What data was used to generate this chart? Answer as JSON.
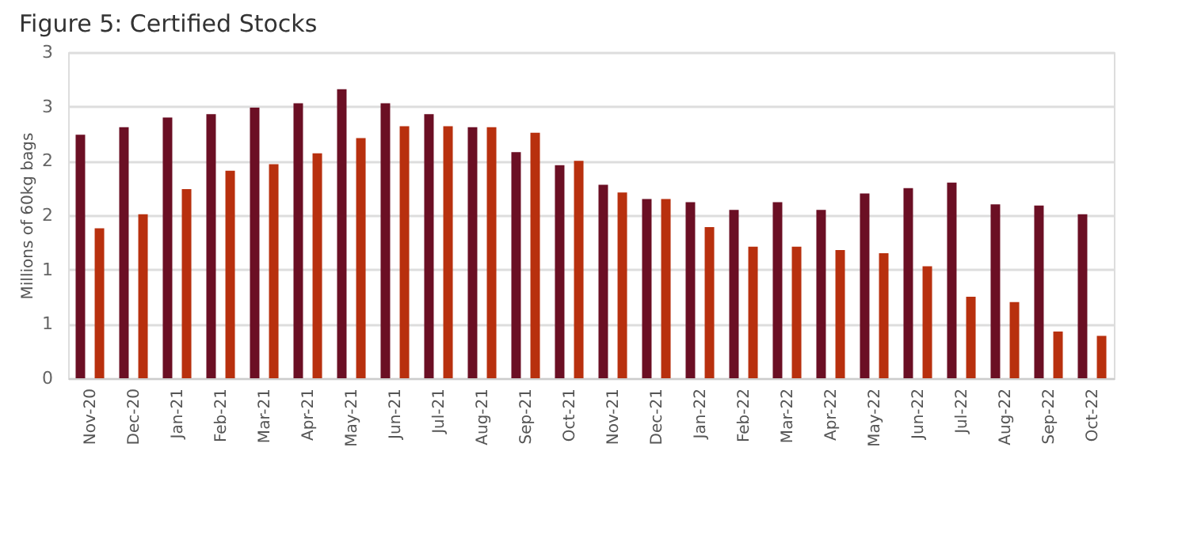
{
  "chart_data": {
    "type": "bar",
    "title": "Figure 5: Certified Stocks",
    "ylabel": "Millions of 60kg bags",
    "categories": [
      "Nov-20",
      "Dec-20",
      "Jan-21",
      "Feb-21",
      "Mar-21",
      "Apr-21",
      "May-21",
      "Jun-21",
      "Jul-21",
      "Aug-21",
      "Sep-21",
      "Oct-21",
      "Nov-21",
      "Dec-21",
      "Jan-22",
      "Feb-22",
      "Mar-22",
      "Apr-22",
      "May-22",
      "Jun-22",
      "Jul-22",
      "Aug-22",
      "Sep-22",
      "Oct-22"
    ],
    "series": [
      {
        "color": "#6b0f24",
        "values": [
          2.24,
          2.31,
          2.4,
          2.43,
          2.49,
          2.53,
          2.66,
          2.53,
          2.43,
          2.31,
          2.08,
          1.96,
          1.78,
          1.65,
          1.62,
          1.55,
          1.62,
          1.55,
          1.7,
          1.75,
          1.8,
          1.6,
          1.59,
          1.51
        ]
      },
      {
        "color": "#b8300e",
        "values": [
          1.38,
          1.51,
          1.74,
          1.91,
          1.97,
          2.07,
          2.21,
          2.32,
          2.32,
          2.31,
          2.26,
          2.0,
          1.71,
          1.65,
          1.39,
          1.21,
          1.21,
          1.18,
          1.15,
          1.03,
          0.75,
          0.7,
          0.43,
          0.39
        ]
      }
    ],
    "ylim": [
      0,
      3
    ],
    "yticks": [
      0,
      {
        "value": 0.5,
        "label": "1"
      },
      1,
      {
        "value": 1.5,
        "label": "2"
      },
      2,
      {
        "value": 2.5,
        "label": "3"
      },
      3
    ],
    "grid": "y",
    "legend": false
  }
}
